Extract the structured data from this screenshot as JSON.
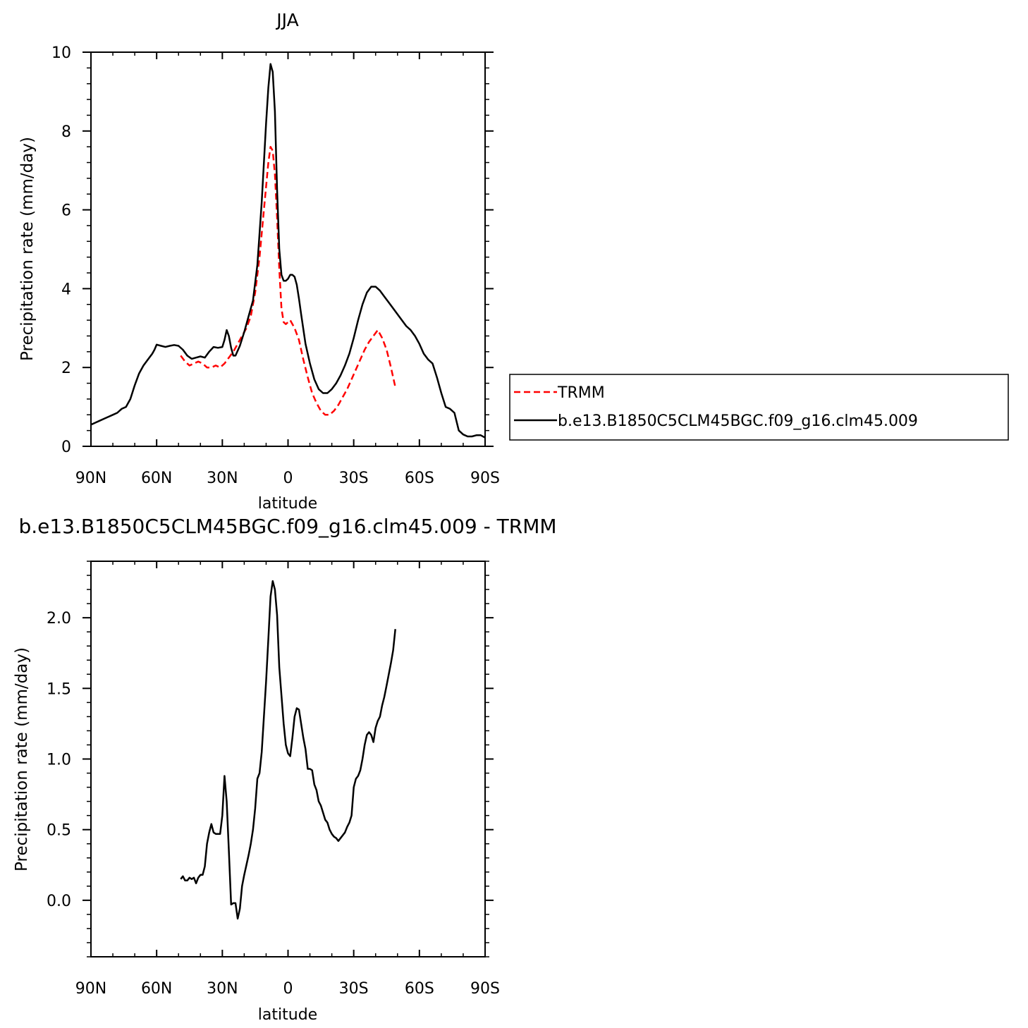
{
  "chart_data": [
    {
      "type": "line",
      "title": "JJA",
      "xlabel": "latitude",
      "ylabel": "Precipitation rate (mm/day)",
      "xlim": [
        90,
        -90
      ],
      "ylim": [
        0,
        10
      ],
      "xtick_values": [
        90,
        60,
        30,
        0,
        -30,
        -60,
        -90
      ],
      "xtick_labels": [
        "90N",
        "60N",
        "30N",
        "0",
        "30S",
        "60S",
        "90S"
      ],
      "ytick_values": [
        0,
        2,
        4,
        6,
        8,
        10
      ],
      "ytick_labels": [
        "0",
        "2",
        "4",
        "6",
        "8",
        "10"
      ],
      "legend_position": "right",
      "series": [
        {
          "name": "TRMM",
          "color": "#ff0000",
          "style": "dashed",
          "x": [
            49,
            47,
            45,
            43,
            41,
            39,
            37,
            35,
            33,
            31,
            29,
            27,
            25,
            23,
            21,
            19,
            17,
            15,
            13,
            11,
            9,
            8,
            7,
            6,
            5,
            4,
            3,
            2,
            1,
            0,
            -1,
            -2,
            -3,
            -5,
            -7,
            -9,
            -11,
            -13,
            -15,
            -17,
            -19,
            -21,
            -23,
            -25,
            -27,
            -29,
            -31,
            -33,
            -35,
            -37,
            -39,
            -41,
            -43,
            -45,
            -47,
            -49
          ],
          "y": [
            2.3,
            2.15,
            2.05,
            2.1,
            2.15,
            2.1,
            2.0,
            2.0,
            2.05,
            2.0,
            2.1,
            2.25,
            2.4,
            2.6,
            2.8,
            3.0,
            3.3,
            3.9,
            4.8,
            6.0,
            7.2,
            7.6,
            7.5,
            6.9,
            5.8,
            4.5,
            3.5,
            3.15,
            3.1,
            3.15,
            3.2,
            3.1,
            3.0,
            2.7,
            2.2,
            1.75,
            1.35,
            1.1,
            0.9,
            0.8,
            0.8,
            0.9,
            1.05,
            1.25,
            1.45,
            1.7,
            1.95,
            2.2,
            2.45,
            2.65,
            2.8,
            2.95,
            2.75,
            2.45,
            2.0,
            1.5
          ]
        },
        {
          "name": "b.e13.B1850C5CLM45BGC.f09_g16.clm45.009",
          "color": "#000000",
          "style": "solid",
          "x": [
            90,
            88,
            86,
            84,
            82,
            80,
            78,
            76,
            74,
            72,
            70,
            68,
            66,
            64,
            62,
            61,
            60,
            58,
            56,
            54,
            52,
            50,
            48,
            46,
            44,
            42,
            40,
            38,
            36,
            34,
            32,
            30,
            29,
            28,
            27,
            26,
            25,
            24,
            22,
            20,
            18,
            16,
            14,
            12,
            10,
            9,
            8,
            7,
            6,
            5,
            4,
            3,
            2,
            1,
            0,
            -1,
            -2,
            -3,
            -4,
            -5,
            -6,
            -8,
            -10,
            -12,
            -14,
            -16,
            -18,
            -20,
            -22,
            -24,
            -26,
            -28,
            -30,
            -32,
            -34,
            -36,
            -38,
            -40,
            -42,
            -44,
            -46,
            -48,
            -50,
            -52,
            -54,
            -56,
            -58,
            -60,
            -62,
            -64,
            -66,
            -68,
            -70,
            -72,
            -74,
            -76,
            -78,
            -80,
            -82,
            -84,
            -86,
            -88,
            -90
          ],
          "y": [
            0.55,
            0.6,
            0.65,
            0.7,
            0.75,
            0.8,
            0.85,
            0.95,
            1.0,
            1.2,
            1.55,
            1.85,
            2.05,
            2.2,
            2.35,
            2.45,
            2.58,
            2.55,
            2.52,
            2.55,
            2.57,
            2.55,
            2.45,
            2.3,
            2.22,
            2.25,
            2.28,
            2.25,
            2.4,
            2.52,
            2.5,
            2.52,
            2.7,
            2.95,
            2.8,
            2.5,
            2.3,
            2.3,
            2.55,
            2.9,
            3.3,
            3.7,
            4.6,
            6.2,
            8.2,
            9.1,
            9.7,
            9.5,
            8.5,
            6.5,
            5.0,
            4.35,
            4.2,
            4.2,
            4.25,
            4.35,
            4.35,
            4.3,
            4.1,
            3.75,
            3.35,
            2.6,
            2.1,
            1.7,
            1.45,
            1.35,
            1.35,
            1.45,
            1.6,
            1.8,
            2.05,
            2.35,
            2.75,
            3.2,
            3.6,
            3.9,
            4.05,
            4.05,
            3.95,
            3.8,
            3.65,
            3.5,
            3.35,
            3.2,
            3.05,
            2.95,
            2.8,
            2.6,
            2.35,
            2.2,
            2.1,
            1.75,
            1.35,
            1.0,
            0.95,
            0.85,
            0.4,
            0.3,
            0.25,
            0.25,
            0.28,
            0.28,
            0.22
          ]
        }
      ]
    },
    {
      "type": "line",
      "title": "b.e13.B1850C5CLM45BGC.f09_g16.clm45.009 - TRMM",
      "xlabel": "latitude",
      "ylabel": "Precipitation rate (mm/day)",
      "xlim": [
        90,
        -90
      ],
      "ylim": [
        -0.4,
        2.4
      ],
      "xtick_values": [
        90,
        60,
        30,
        0,
        -30,
        -60,
        -90
      ],
      "xtick_labels": [
        "90N",
        "60N",
        "30N",
        "0",
        "30S",
        "60S",
        "90S"
      ],
      "ytick_values": [
        0.0,
        0.5,
        1.0,
        1.5,
        2.0
      ],
      "ytick_labels": [
        "0.0",
        "0.5",
        "1.0",
        "1.5",
        "2.0"
      ],
      "series": [
        {
          "color": "#000000",
          "style": "solid",
          "x": [
            49,
            48,
            47,
            46,
            45,
            44,
            43,
            42,
            41,
            40,
            39,
            38,
            37,
            36,
            35,
            34,
            33,
            32,
            31,
            30,
            29,
            28,
            27,
            26,
            25,
            24,
            23,
            22,
            21,
            20,
            19,
            18,
            17,
            16,
            15,
            14,
            13,
            12,
            11,
            10,
            9,
            8,
            7,
            6,
            5,
            4,
            3,
            2,
            1,
            0,
            -1,
            -2,
            -3,
            -4,
            -5,
            -6,
            -7,
            -8,
            -9,
            -10,
            -11,
            -12,
            -13,
            -14,
            -15,
            -16,
            -17,
            -18,
            -19,
            -20,
            -21,
            -22,
            -23,
            -24,
            -25,
            -26,
            -27,
            -28,
            -29,
            -30,
            -31,
            -32,
            -33,
            -34,
            -35,
            -36,
            -37,
            -38,
            -39,
            -40,
            -41,
            -42,
            -43,
            -44,
            -45,
            -46,
            -47,
            -48,
            -49
          ],
          "y": [
            0.15,
            0.17,
            0.14,
            0.14,
            0.16,
            0.15,
            0.16,
            0.12,
            0.16,
            0.18,
            0.18,
            0.24,
            0.4,
            0.48,
            0.54,
            0.48,
            0.47,
            0.47,
            0.47,
            0.6,
            0.88,
            0.7,
            0.35,
            -0.03,
            -0.02,
            -0.02,
            -0.13,
            -0.06,
            0.1,
            0.18,
            0.25,
            0.32,
            0.4,
            0.5,
            0.65,
            0.86,
            0.9,
            1.05,
            1.3,
            1.55,
            1.85,
            2.15,
            2.26,
            2.2,
            2.02,
            1.65,
            1.45,
            1.25,
            1.1,
            1.04,
            1.02,
            1.15,
            1.3,
            1.36,
            1.35,
            1.25,
            1.15,
            1.07,
            0.93,
            0.93,
            0.92,
            0.82,
            0.78,
            0.7,
            0.67,
            0.62,
            0.57,
            0.55,
            0.5,
            0.47,
            0.45,
            0.44,
            0.42,
            0.44,
            0.46,
            0.48,
            0.52,
            0.55,
            0.6,
            0.8,
            0.86,
            0.88,
            0.92,
            1.0,
            1.1,
            1.17,
            1.19,
            1.17,
            1.12,
            1.22,
            1.27,
            1.3,
            1.38,
            1.44,
            1.52,
            1.6,
            1.68,
            1.77,
            1.92
          ]
        }
      ]
    }
  ]
}
